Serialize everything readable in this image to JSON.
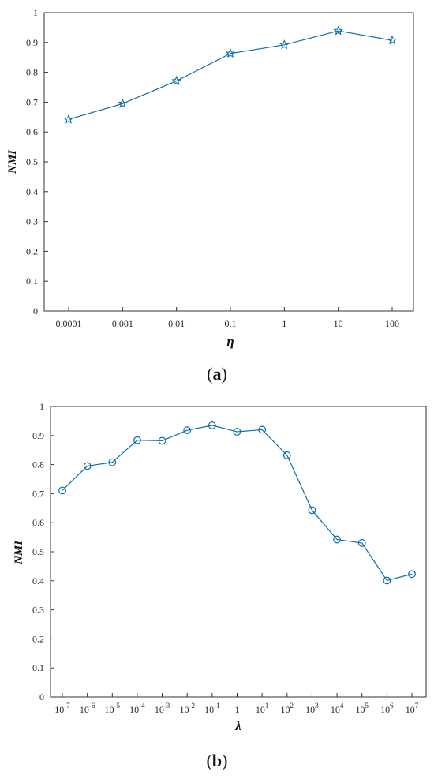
{
  "chart_data": [
    {
      "type": "line",
      "caption_paren_open": "(",
      "caption_letter": "a",
      "caption_paren_close": ")",
      "xlabel": "η",
      "ylabel": "NMI",
      "categories": [
        "0.0001",
        "0.001",
        "0.01",
        "0.1",
        "1",
        "10",
        "100"
      ],
      "values": [
        0.642,
        0.695,
        0.771,
        0.863,
        0.892,
        0.939,
        0.907
      ],
      "ylim": [
        0,
        1
      ],
      "yticks": [
        "0",
        "0.1",
        "0.2",
        "0.3",
        "0.4",
        "0.5",
        "0.6",
        "0.7",
        "0.8",
        "0.9",
        "1"
      ],
      "marker": "star",
      "color": "#0b6ea8",
      "grid": false
    },
    {
      "type": "line",
      "caption_paren_open": "(",
      "caption_letter": "b",
      "caption_paren_close": ")",
      "xlabel": "λ",
      "ylabel": "NMI",
      "categories": [
        "-7",
        "-6",
        "-5",
        "-4",
        "-3",
        "-2",
        "-1",
        "1",
        "1",
        "2",
        "3",
        "4",
        "5",
        "6",
        "7"
      ],
      "category_bases": [
        "10",
        "10",
        "10",
        "10",
        "10",
        "10",
        "10",
        "",
        "10",
        "10",
        "10",
        "10",
        "10",
        "10",
        "10"
      ],
      "values": [
        0.711,
        0.795,
        0.808,
        0.884,
        0.882,
        0.918,
        0.935,
        0.913,
        0.92,
        0.832,
        0.643,
        0.542,
        0.53,
        0.401,
        0.423
      ],
      "ylim": [
        0,
        1
      ],
      "yticks": [
        "0",
        "0.1",
        "0.2",
        "0.3",
        "0.4",
        "0.5",
        "0.6",
        "0.7",
        "0.8",
        "0.9",
        "1"
      ],
      "marker": "circle",
      "color": "#0b6ea8",
      "grid": false
    }
  ]
}
